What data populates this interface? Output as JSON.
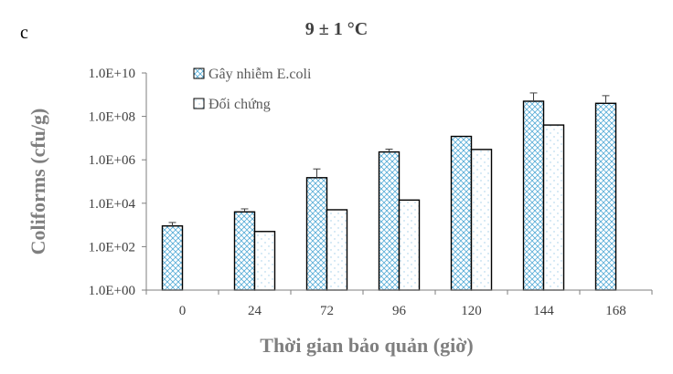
{
  "panel_label": "c",
  "chart_data": {
    "type": "bar",
    "title": "9 ± 1 °C",
    "xlabel": "Thời gian bảo quản (giờ)",
    "ylabel": "Coliforms (cfu/g)",
    "y_scale": "log",
    "ylim": [
      1,
      10000000000
    ],
    "yticks": [
      "1.0E+00",
      "1.0E+02",
      "1.0E+04",
      "1.0E+06",
      "1.0E+08",
      "1.0E+10"
    ],
    "categories": [
      "0",
      "24",
      "72",
      "96",
      "120",
      "144",
      "168"
    ],
    "grid": false,
    "legend_position": "top-left",
    "series": [
      {
        "name": "Gây nhiễm E.coli",
        "pattern": "hatched-dotted",
        "color": "#5aaed8",
        "values": [
          900,
          4000,
          150000,
          2300000,
          12000000,
          500000000,
          400000000
        ],
        "error_upper": [
          1300,
          5500,
          380000,
          3100000,
          null,
          1200000000,
          900000000
        ]
      },
      {
        "name": "Đối chứng",
        "pattern": "dotted",
        "color": "#9ecde8",
        "values": [
          null,
          500,
          5000,
          14000,
          3000000,
          40000000,
          null
        ],
        "error_upper": [
          null,
          null,
          null,
          null,
          null,
          null,
          null
        ]
      }
    ]
  }
}
